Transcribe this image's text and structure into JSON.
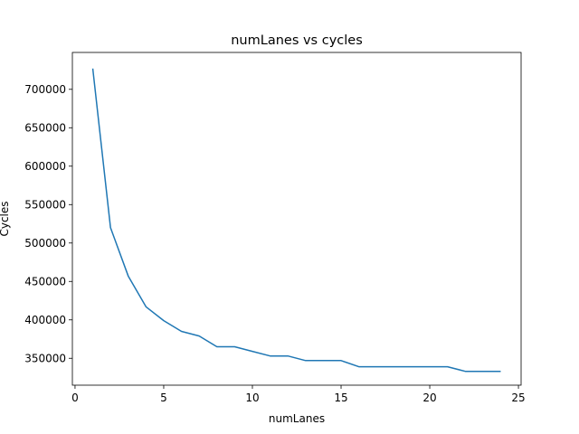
{
  "chart_data": {
    "type": "line",
    "title": "numLanes vs cycles",
    "xlabel": "numLanes",
    "ylabel": "Cycles",
    "xlim": [
      -0.15,
      25.15
    ],
    "ylim": [
      315000,
      748000
    ],
    "xticks": [
      0,
      5,
      10,
      15,
      20,
      25
    ],
    "yticks": [
      350000,
      400000,
      450000,
      500000,
      550000,
      600000,
      650000,
      700000
    ],
    "grid": false,
    "series": [
      {
        "color": "#1f77b4",
        "x": [
          1,
          2,
          3,
          4,
          5,
          6,
          7,
          8,
          9,
          10,
          11,
          12,
          13,
          14,
          15,
          16,
          17,
          18,
          19,
          20,
          21,
          22,
          23,
          24
        ],
        "y": [
          727000,
          520000,
          457000,
          417000,
          399000,
          385000,
          379000,
          365000,
          365000,
          359000,
          353000,
          353000,
          347000,
          347000,
          347000,
          339000,
          339000,
          339000,
          339000,
          339000,
          339000,
          333000,
          333000,
          333000
        ]
      }
    ]
  }
}
